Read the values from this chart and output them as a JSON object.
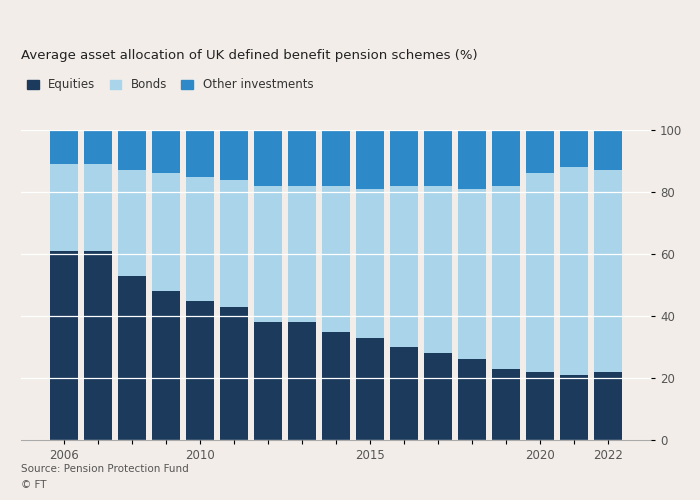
{
  "title": "Average asset allocation of UK defined benefit pension schemes (%)",
  "source": "Source: Pension Protection Fund",
  "footer": "© FT",
  "years": [
    2006,
    2007,
    2008,
    2009,
    2010,
    2011,
    2012,
    2013,
    2014,
    2015,
    2016,
    2017,
    2018,
    2019,
    2020,
    2021,
    2022
  ],
  "equities": [
    61,
    61,
    53,
    48,
    45,
    43,
    38,
    38,
    35,
    33,
    30,
    28,
    26,
    23,
    22,
    21,
    22
  ],
  "bonds": [
    28,
    28,
    34,
    38,
    40,
    41,
    44,
    44,
    47,
    48,
    52,
    54,
    55,
    59,
    64,
    67,
    65
  ],
  "other": [
    11,
    11,
    13,
    14,
    15,
    16,
    18,
    18,
    18,
    19,
    18,
    18,
    19,
    18,
    14,
    12,
    13
  ],
  "colors": {
    "equities": "#1b3a5c",
    "bonds": "#aad4ea",
    "other": "#2d89c8"
  },
  "legend_labels": [
    "Equities",
    "Bonds",
    "Other investments"
  ],
  "ylim": [
    0,
    100
  ],
  "yticks": [
    0,
    20,
    40,
    60,
    80,
    100
  ],
  "x_label_years": [
    2006,
    2010,
    2015,
    2020,
    2022
  ],
  "background_color": "#f2ede8",
  "bar_width": 0.82
}
